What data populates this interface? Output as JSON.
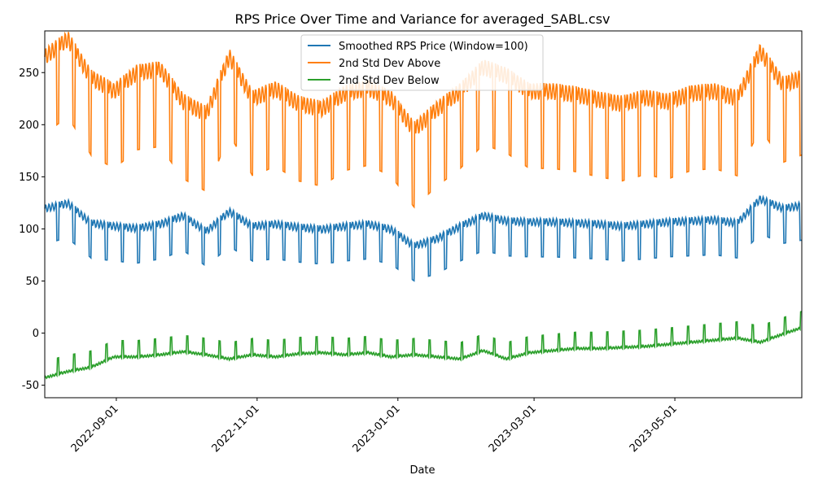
{
  "chart_data": {
    "type": "line",
    "title": "RPS Price Over Time and Variance for averaged_SABL.csv",
    "xlabel": "Date",
    "ylabel": "",
    "x_range": [
      "2022-08-01",
      "2023-06-25"
    ],
    "ylim": [
      -62,
      290
    ],
    "x_ticks": [
      "2022-09-01",
      "2022-11-01",
      "2023-01-01",
      "2023-03-01",
      "2023-05-01"
    ],
    "y_ticks": [
      -50,
      0,
      50,
      100,
      150,
      200,
      250
    ],
    "grid": false,
    "legend_position": "top-center",
    "series": [
      {
        "name": "Smoothed RPS Price (Window=100)",
        "color": "#1f77b4",
        "points": [
          [
            "2022-08-01",
            115
          ],
          [
            "2022-08-11",
            120
          ],
          [
            "2022-08-21",
            101
          ],
          [
            "2022-08-31",
            98
          ],
          [
            "2022-09-10",
            96
          ],
          [
            "2022-09-20",
            100
          ],
          [
            "2022-09-30",
            108
          ],
          [
            "2022-10-10",
            93
          ],
          [
            "2022-10-20",
            112
          ],
          [
            "2022-10-30",
            98
          ],
          [
            "2022-11-09",
            100
          ],
          [
            "2022-11-19",
            97
          ],
          [
            "2022-11-29",
            95
          ],
          [
            "2022-12-09",
            98
          ],
          [
            "2022-12-19",
            100
          ],
          [
            "2022-12-29",
            95
          ],
          [
            "2023-01-08",
            79
          ],
          [
            "2023-01-18",
            86
          ],
          [
            "2023-01-28",
            98
          ],
          [
            "2023-02-07",
            108
          ],
          [
            "2023-02-17",
            103
          ],
          [
            "2023-02-27",
            102
          ],
          [
            "2023-03-09",
            102
          ],
          [
            "2023-03-19",
            101
          ],
          [
            "2023-03-29",
            100
          ],
          [
            "2023-04-08",
            98
          ],
          [
            "2023-04-18",
            100
          ],
          [
            "2023-04-28",
            102
          ],
          [
            "2023-05-08",
            103
          ],
          [
            "2023-05-18",
            104
          ],
          [
            "2023-05-28",
            101
          ],
          [
            "2023-06-07",
            124
          ],
          [
            "2023-06-17",
            115
          ],
          [
            "2023-06-25",
            118
          ]
        ]
      },
      {
        "name": "2nd Std Dev Above",
        "color": "#ff7f0e",
        "points": [
          [
            "2022-08-01",
            255
          ],
          [
            "2022-08-11",
            272
          ],
          [
            "2022-08-21",
            235
          ],
          [
            "2022-08-31",
            222
          ],
          [
            "2022-09-10",
            240
          ],
          [
            "2022-09-20",
            243
          ],
          [
            "2022-09-30",
            212
          ],
          [
            "2022-10-10",
            200
          ],
          [
            "2022-10-20",
            255
          ],
          [
            "2022-10-30",
            215
          ],
          [
            "2022-11-09",
            224
          ],
          [
            "2022-11-19",
            210
          ],
          [
            "2022-11-29",
            205
          ],
          [
            "2022-12-09",
            220
          ],
          [
            "2022-12-19",
            225
          ],
          [
            "2022-12-29",
            215
          ],
          [
            "2023-01-08",
            185
          ],
          [
            "2023-01-18",
            205
          ],
          [
            "2023-01-28",
            222
          ],
          [
            "2023-02-07",
            245
          ],
          [
            "2023-02-17",
            237
          ],
          [
            "2023-02-27",
            222
          ],
          [
            "2023-03-09",
            222
          ],
          [
            "2023-03-19",
            219
          ],
          [
            "2023-03-29",
            214
          ],
          [
            "2023-04-08",
            210
          ],
          [
            "2023-04-18",
            216
          ],
          [
            "2023-04-28",
            212
          ],
          [
            "2023-05-08",
            220
          ],
          [
            "2023-05-18",
            222
          ],
          [
            "2023-05-28",
            215
          ],
          [
            "2023-06-07",
            260
          ],
          [
            "2023-06-17",
            228
          ],
          [
            "2023-06-25",
            235
          ]
        ]
      },
      {
        "name": "2nd Std Dev Below",
        "color": "#2ca02c",
        "points": [
          [
            "2022-08-01",
            -40
          ],
          [
            "2022-08-11",
            -34
          ],
          [
            "2022-08-21",
            -30
          ],
          [
            "2022-08-31",
            -20
          ],
          [
            "2022-09-10",
            -20
          ],
          [
            "2022-09-20",
            -18
          ],
          [
            "2022-09-30",
            -15
          ],
          [
            "2022-10-10",
            -18
          ],
          [
            "2022-10-20",
            -22
          ],
          [
            "2022-10-30",
            -18
          ],
          [
            "2022-11-09",
            -20
          ],
          [
            "2022-11-19",
            -17
          ],
          [
            "2022-11-29",
            -16
          ],
          [
            "2022-12-09",
            -18
          ],
          [
            "2022-12-19",
            -16
          ],
          [
            "2022-12-29",
            -20
          ],
          [
            "2023-01-08",
            -18
          ],
          [
            "2023-01-18",
            -20
          ],
          [
            "2023-01-28",
            -22
          ],
          [
            "2023-02-07",
            -14
          ],
          [
            "2023-02-17",
            -22
          ],
          [
            "2023-02-27",
            -16
          ],
          [
            "2023-03-09",
            -14
          ],
          [
            "2023-03-19",
            -12
          ],
          [
            "2023-03-29",
            -12
          ],
          [
            "2023-04-08",
            -11
          ],
          [
            "2023-04-18",
            -10
          ],
          [
            "2023-04-28",
            -8
          ],
          [
            "2023-05-08",
            -6
          ],
          [
            "2023-05-18",
            -4
          ],
          [
            "2023-05-28",
            -2
          ],
          [
            "2023-06-07",
            -6
          ],
          [
            "2023-06-17",
            2
          ],
          [
            "2023-06-25",
            8
          ]
        ]
      }
    ]
  }
}
